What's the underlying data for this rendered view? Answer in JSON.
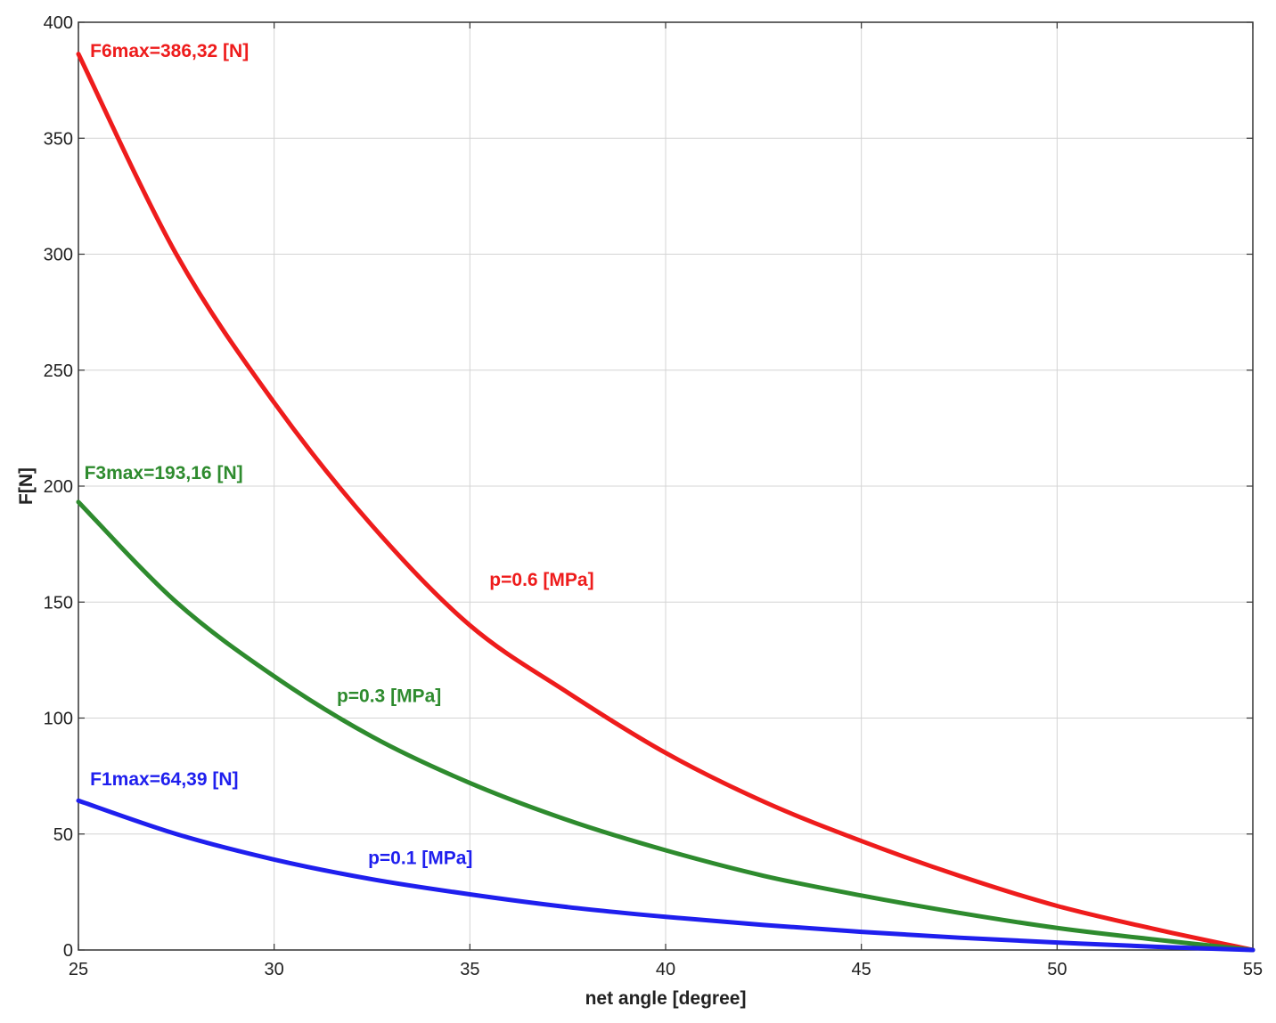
{
  "chart_data": {
    "type": "line",
    "title": "",
    "xlabel": "net angle [degree]",
    "ylabel": "F[N]",
    "xlim": [
      25,
      55
    ],
    "ylim": [
      0,
      400
    ],
    "xticks": [
      25,
      30,
      35,
      40,
      45,
      50,
      55
    ],
    "yticks": [
      0,
      50,
      100,
      150,
      200,
      250,
      300,
      350,
      400
    ],
    "grid": true,
    "legend": "none",
    "x": [
      25,
      27.5,
      30,
      32.5,
      35,
      37.5,
      40,
      42.5,
      45,
      47.5,
      50,
      52.5,
      55
    ],
    "series": [
      {
        "color": "#ee1c1c",
        "values": [
          386.32,
          300,
          236,
          183,
          140,
          111,
          85,
          64,
          47,
          32,
          19,
          9,
          0
        ]
      },
      {
        "color": "#2e8b2e",
        "values": [
          193.16,
          150,
          118,
          92,
          72,
          56,
          43,
          32,
          23.5,
          16,
          9.5,
          4.5,
          0
        ]
      },
      {
        "color": "#1f1fee",
        "values": [
          64.39,
          50,
          39,
          30.5,
          24,
          18.5,
          14.3,
          10.8,
          7.8,
          5.3,
          3.2,
          1.4,
          0
        ]
      }
    ],
    "annotations": [
      {
        "text": "F6max=386,32 [N]",
        "x": 25.3,
        "y": 385,
        "color": "#ee1c1c"
      },
      {
        "text": "p=0.6 [MPa]",
        "x": 35.5,
        "y": 157,
        "color": "#ee1c1c"
      },
      {
        "text": "F3max=193,16 [N]",
        "x": 25.15,
        "y": 203,
        "color": "#2e8b2e"
      },
      {
        "text": "p=0.3 [MPa]",
        "x": 31.6,
        "y": 107,
        "color": "#2e8b2e"
      },
      {
        "text": "F1max=64,39 [N]",
        "x": 25.3,
        "y": 71,
        "color": "#1f1fee"
      },
      {
        "text": "p=0.1 [MPa]",
        "x": 32.4,
        "y": 37,
        "color": "#1f1fee"
      }
    ]
  }
}
